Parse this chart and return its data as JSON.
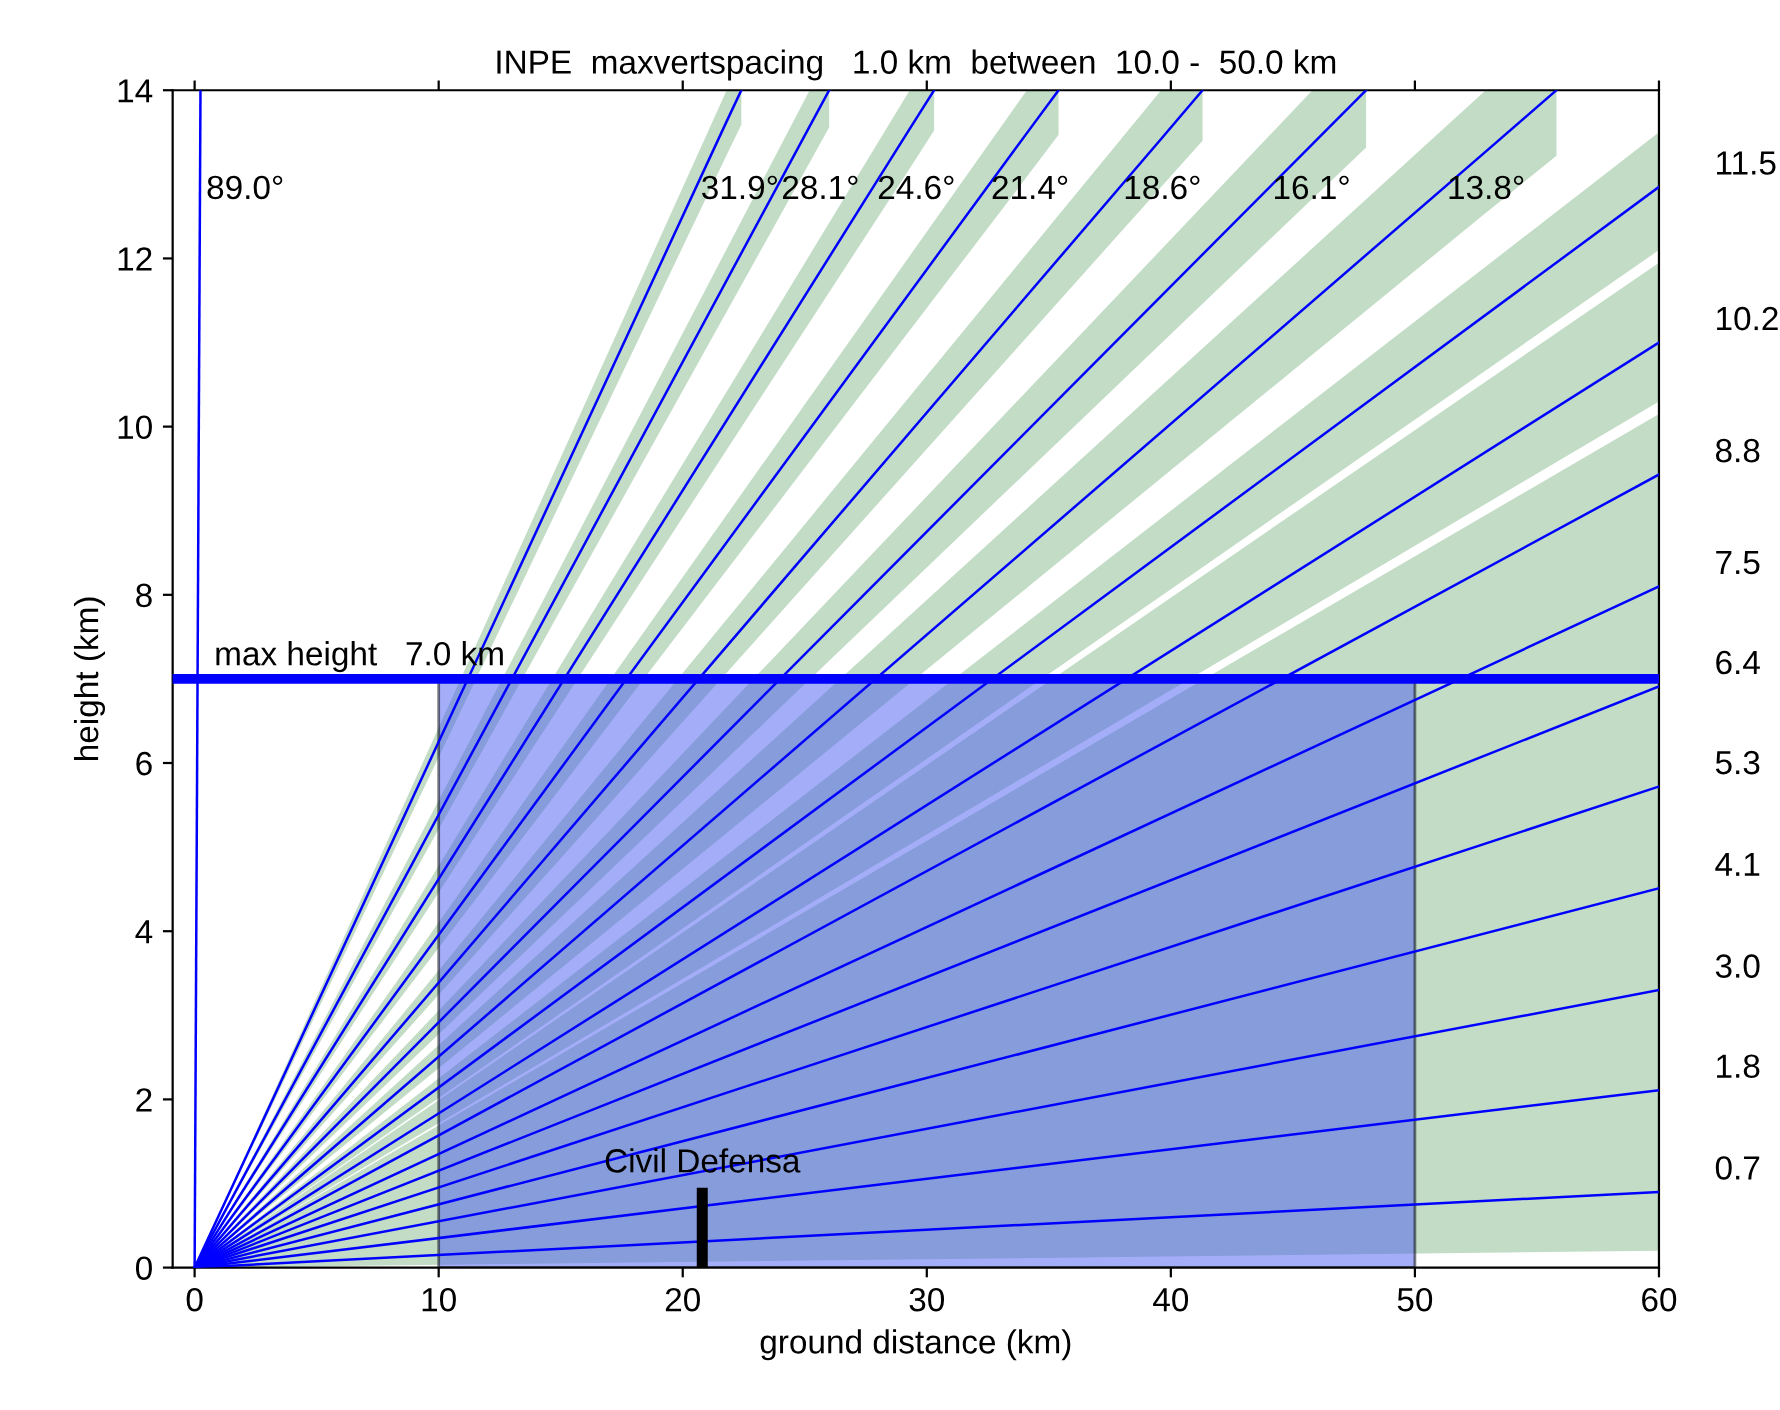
{
  "chart_data": {
    "type": "line",
    "title": "INPE  maxvertspacing   1.0 km  between  10.0 -  50.0 km",
    "xlabel": "ground distance (km)",
    "ylabel": "height (km)",
    "xlim": [
      -0.9,
      60
    ],
    "ylim": [
      0,
      14
    ],
    "xticks": [
      0,
      10,
      20,
      30,
      40,
      50,
      60
    ],
    "yticks": [
      0,
      2,
      4,
      6,
      8,
      10,
      12,
      14
    ],
    "grid": false,
    "series": [
      {
        "type": "area",
        "color": "#4a5cf0",
        "x": [
          10,
          50
        ],
        "values": [
          7,
          7
        ]
      },
      {
        "name": "0.7",
        "color": "#0000ff",
        "x": [
          0,
          60
        ],
        "values": [
          0,
          0.9
        ],
        "lower": [
          0,
          0.2
        ],
        "upper": [
          0,
          10.15
        ]
      },
      {
        "name": "1.8",
        "color": "#0000ff",
        "x": [
          0,
          60
        ],
        "values": [
          0,
          2.11
        ]
      },
      {
        "name": "3.0",
        "color": "#0000ff",
        "x": [
          0,
          60
        ],
        "values": [
          0,
          3.3
        ]
      },
      {
        "name": "4.1",
        "color": "#0000ff",
        "x": [
          0,
          60
        ],
        "values": [
          0,
          4.51
        ]
      },
      {
        "name": "5.3",
        "color": "#0000ff",
        "x": [
          0,
          60
        ],
        "values": [
          0,
          5.72
        ]
      },
      {
        "name": "6.4",
        "color": "#0000ff",
        "x": [
          0,
          60
        ],
        "values": [
          0,
          6.91
        ]
      },
      {
        "name": "7.5",
        "color": "#0000ff",
        "x": [
          0,
          60
        ],
        "values": [
          0,
          8.1
        ]
      },
      {
        "name": "8.8",
        "color": "#0000ff",
        "x": [
          0,
          60
        ],
        "values": [
          0,
          9.43
        ]
      },
      {
        "name": "10.2",
        "color": "#0000ff",
        "x": [
          0,
          60
        ],
        "values": [
          0,
          11.0
        ],
        "lower": [
          0,
          10.3
        ],
        "upper": [
          0,
          11.95
        ]
      },
      {
        "name": "11.5",
        "color": "#0000ff",
        "x": [
          0,
          60
        ],
        "values": [
          0,
          12.85
        ],
        "lower": [
          0,
          12.1
        ],
        "upper": [
          0,
          13.5
        ]
      },
      {
        "name": "13.8°",
        "color": "#0000ff",
        "x": [
          0,
          52.9,
          55.8
        ],
        "values": [
          0,
          13.27,
          14
        ],
        "lower": [
          0,
          12.54,
          13.22
        ],
        "upper": [
          0,
          14,
          14
        ]
      },
      {
        "name": "16.1°",
        "color": "#0000ff",
        "x": [
          0,
          45.8,
          48.0
        ],
        "values": [
          0,
          13.36,
          14
        ],
        "lower": [
          0,
          12.71,
          13.32
        ],
        "upper": [
          0,
          14,
          14
        ]
      },
      {
        "name": "18.6°",
        "color": "#0000ff",
        "x": [
          0,
          39.6,
          41.3
        ],
        "values": [
          0,
          13.42,
          14
        ],
        "lower": [
          0,
          12.85,
          13.4
        ],
        "upper": [
          0,
          14,
          14
        ]
      },
      {
        "name": "21.4°",
        "color": "#0000ff",
        "x": [
          0,
          34.1,
          35.4
        ],
        "values": [
          0,
          13.49,
          14
        ],
        "lower": [
          0,
          12.97,
          13.47
        ],
        "upper": [
          0,
          14,
          14
        ]
      },
      {
        "name": "24.6°",
        "color": "#0000ff",
        "x": [
          0,
          29.3,
          30.3
        ],
        "values": [
          0,
          13.54,
          14
        ],
        "lower": [
          0,
          13.07,
          13.52
        ],
        "upper": [
          0,
          14,
          14
        ]
      },
      {
        "name": "28.1°",
        "color": "#0000ff",
        "x": [
          0,
          25.2,
          26.0
        ],
        "values": [
          0,
          13.57,
          14
        ],
        "lower": [
          0,
          13.14,
          13.56
        ],
        "upper": [
          0,
          14,
          14
        ]
      },
      {
        "name": "31.9°",
        "color": "#0000ff",
        "x": [
          0,
          21.8,
          22.4
        ],
        "values": [
          0,
          13.63,
          14
        ],
        "lower": [
          0,
          13.23,
          13.59
        ],
        "upper": [
          0,
          14,
          14
        ]
      },
      {
        "name": "89.0°",
        "color": "#0000ff",
        "x": [
          0,
          0.24
        ],
        "values": [
          0,
          14
        ]
      },
      {
        "type": "bar",
        "name": "Civil Defensa",
        "color": "#000000",
        "x": [
          20.8
        ],
        "values": [
          0.95
        ]
      }
    ],
    "ref_lines": [
      {
        "axis": "y",
        "value": 7,
        "label": "max height   7.0 km",
        "color": "#0000ff"
      }
    ]
  }
}
